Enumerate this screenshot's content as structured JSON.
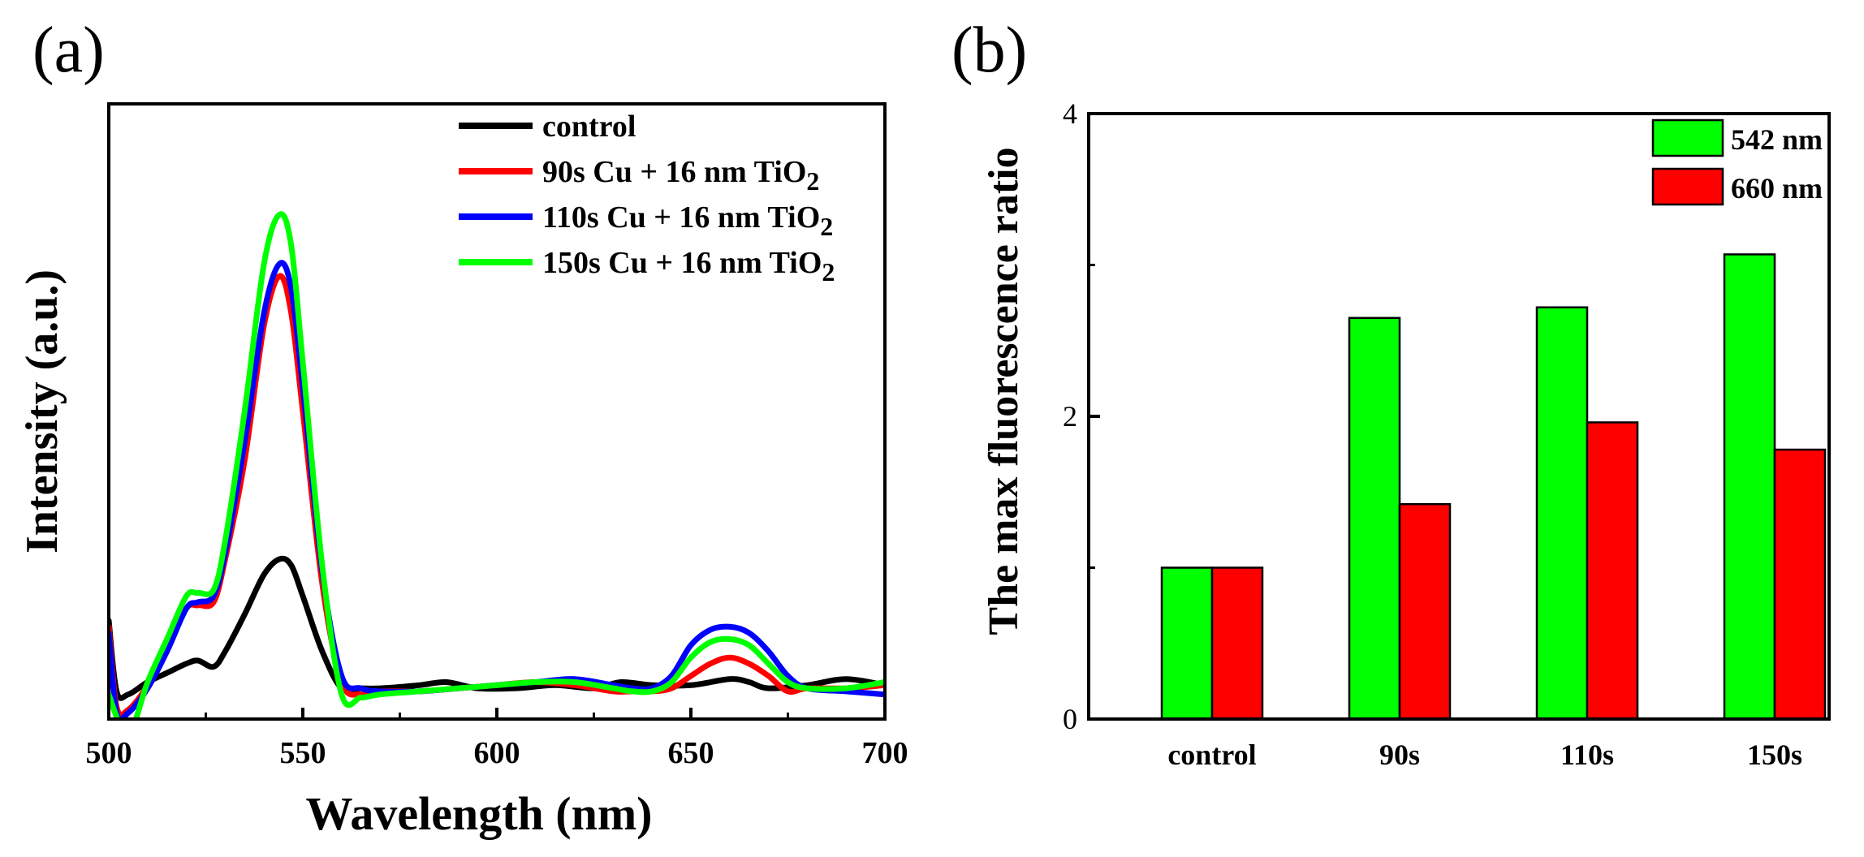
{
  "chart_data": [
    {
      "type": "line",
      "panel_label": "(a)",
      "xlabel": "Wavelength (nm)",
      "ylabel": "Intensity (a.u.)",
      "xlim": [
        500,
        700
      ],
      "ylim": [
        0,
        1
      ],
      "x_ticks": [
        "500",
        "550",
        "600",
        "650",
        "700"
      ],
      "y_ticks_shown": false,
      "legend_position": "top-right",
      "series": [
        {
          "name": "control",
          "legend_main": "control",
          "legend_sub": "",
          "color": "#000000",
          "x": [
            500,
            502,
            505,
            510,
            515,
            520,
            523,
            527,
            530,
            535,
            540,
            544,
            547,
            550,
            555,
            560,
            565,
            570,
            580,
            587,
            595,
            605,
            615,
            625,
            632,
            640,
            650,
            660,
            665,
            670,
            680,
            690,
            700
          ],
          "y": [
            0.16,
            0.045,
            0.04,
            0.06,
            0.075,
            0.09,
            0.095,
            0.085,
            0.11,
            0.17,
            0.235,
            0.26,
            0.25,
            0.2,
            0.11,
            0.05,
            0.05,
            0.05,
            0.055,
            0.06,
            0.05,
            0.05,
            0.055,
            0.05,
            0.06,
            0.055,
            0.055,
            0.065,
            0.06,
            0.05,
            0.055,
            0.065,
            0.055
          ]
        },
        {
          "name": "90s Cu + 16 nm TiO2",
          "legend_main": "90s Cu + 16 nm TiO",
          "legend_sub": "2",
          "color": "#ff0000",
          "x": [
            500,
            502,
            505,
            510,
            515,
            520,
            523,
            527,
            530,
            535,
            540,
            544,
            547,
            550,
            555,
            560,
            565,
            570,
            580,
            590,
            600,
            610,
            620,
            630,
            635,
            640,
            645,
            650,
            655,
            660,
            665,
            670,
            675,
            680,
            690,
            700
          ],
          "y": [
            0.15,
            0.02,
            0.015,
            0.055,
            0.12,
            0.18,
            0.185,
            0.19,
            0.26,
            0.42,
            0.64,
            0.72,
            0.66,
            0.5,
            0.22,
            0.06,
            0.04,
            0.045,
            0.045,
            0.05,
            0.055,
            0.06,
            0.055,
            0.045,
            0.045,
            0.045,
            0.05,
            0.07,
            0.09,
            0.1,
            0.09,
            0.07,
            0.045,
            0.05,
            0.05,
            0.055
          ]
        },
        {
          "name": "110s Cu + 16 nm TiO2",
          "legend_main": "110s Cu + 16 nm TiO",
          "legend_sub": "2",
          "color": "#0000ff",
          "x": [
            500,
            502,
            505,
            510,
            515,
            520,
            523,
            527,
            530,
            535,
            540,
            544,
            547,
            550,
            555,
            560,
            565,
            570,
            580,
            590,
            600,
            610,
            620,
            630,
            635,
            640,
            645,
            650,
            655,
            660,
            665,
            670,
            675,
            680,
            690,
            700
          ],
          "y": [
            0.14,
            0.01,
            0.01,
            0.05,
            0.11,
            0.18,
            0.19,
            0.2,
            0.27,
            0.45,
            0.66,
            0.74,
            0.7,
            0.54,
            0.24,
            0.07,
            0.05,
            0.045,
            0.045,
            0.05,
            0.055,
            0.06,
            0.065,
            0.055,
            0.05,
            0.05,
            0.07,
            0.12,
            0.145,
            0.15,
            0.14,
            0.11,
            0.07,
            0.05,
            0.045,
            0.04
          ]
        },
        {
          "name": "150s Cu + 16 nm TiO2",
          "legend_main": "150s Cu + 16 nm TiO",
          "legend_sub": "2",
          "color": "#00ff00",
          "x": [
            500,
            503,
            506,
            510,
            515,
            520,
            523,
            527,
            530,
            535,
            540,
            544,
            547,
            550,
            555,
            560,
            565,
            570,
            580,
            590,
            600,
            610,
            620,
            630,
            635,
            640,
            645,
            650,
            655,
            660,
            665,
            670,
            675,
            680,
            690,
            700
          ],
          "y": [
            0.04,
            -0.01,
            -0.015,
            0.06,
            0.13,
            0.2,
            0.205,
            0.21,
            0.29,
            0.5,
            0.74,
            0.82,
            0.77,
            0.58,
            0.25,
            0.04,
            0.035,
            0.04,
            0.045,
            0.05,
            0.055,
            0.06,
            0.06,
            0.05,
            0.045,
            0.045,
            0.06,
            0.1,
            0.125,
            0.13,
            0.12,
            0.09,
            0.06,
            0.05,
            0.05,
            0.06
          ]
        }
      ]
    },
    {
      "type": "bar",
      "panel_label": "(b)",
      "xlabel": "",
      "ylabel": "The max fluorescence ratio",
      "ylim": [
        0,
        4
      ],
      "y_ticks": [
        0,
        2,
        4
      ],
      "categories": [
        "control",
        "90s",
        "110s",
        "150s"
      ],
      "legend_position": "top-right",
      "series": [
        {
          "name": "542 nm",
          "color": "#00ff00",
          "values": [
            1.0,
            2.65,
            2.72,
            3.07
          ]
        },
        {
          "name": "660 nm",
          "color": "#ff0000",
          "values": [
            1.0,
            1.42,
            1.96,
            1.78
          ]
        }
      ]
    }
  ]
}
